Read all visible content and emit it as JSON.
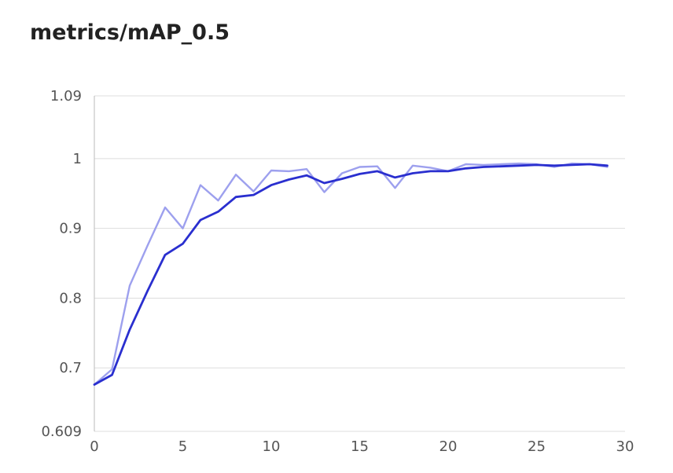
{
  "title": "metrics/mAP_0.5",
  "colors": {
    "raw": "#9da0ee",
    "smoothed": "#2a2fcf",
    "grid": "#dddddd",
    "axis": "#bbbbbb"
  },
  "chart_data": {
    "type": "line",
    "title": "metrics/mAP_0.5",
    "xlabel": "",
    "ylabel": "",
    "xlim": [
      0,
      30
    ],
    "ylim": [
      0.609,
      1.09
    ],
    "x_ticks": [
      0,
      5,
      10,
      15,
      20,
      25,
      30
    ],
    "y_ticks": [
      0.609,
      0.7,
      0.8,
      0.9,
      1,
      1.09
    ],
    "y_tick_labels": [
      "0.609",
      "0.7",
      "0.8",
      "0.9",
      "1",
      "1.09"
    ],
    "grid": true,
    "legend": "none",
    "x": [
      0,
      1,
      2,
      3,
      4,
      5,
      6,
      7,
      8,
      9,
      10,
      11,
      12,
      13,
      14,
      15,
      16,
      17,
      18,
      19,
      20,
      21,
      22,
      23,
      24,
      25,
      26,
      27,
      28,
      29
    ],
    "series": [
      {
        "role": "raw",
        "values": [
          0.676,
          0.698,
          0.818,
          0.875,
          0.93,
          0.9,
          0.962,
          0.94,
          0.977,
          0.953,
          0.983,
          0.982,
          0.985,
          0.952,
          0.979,
          0.988,
          0.989,
          0.958,
          0.99,
          0.987,
          0.982,
          0.992,
          0.991,
          0.992,
          0.993,
          0.992,
          0.988,
          0.993,
          0.992,
          0.988
        ]
      },
      {
        "role": "smoothed",
        "values": [
          0.676,
          0.69,
          0.755,
          0.81,
          0.862,
          0.878,
          0.912,
          0.924,
          0.945,
          0.948,
          0.962,
          0.97,
          0.976,
          0.965,
          0.971,
          0.978,
          0.982,
          0.973,
          0.979,
          0.982,
          0.982,
          0.986,
          0.988,
          0.989,
          0.99,
          0.991,
          0.99,
          0.991,
          0.992,
          0.99
        ]
      }
    ]
  }
}
